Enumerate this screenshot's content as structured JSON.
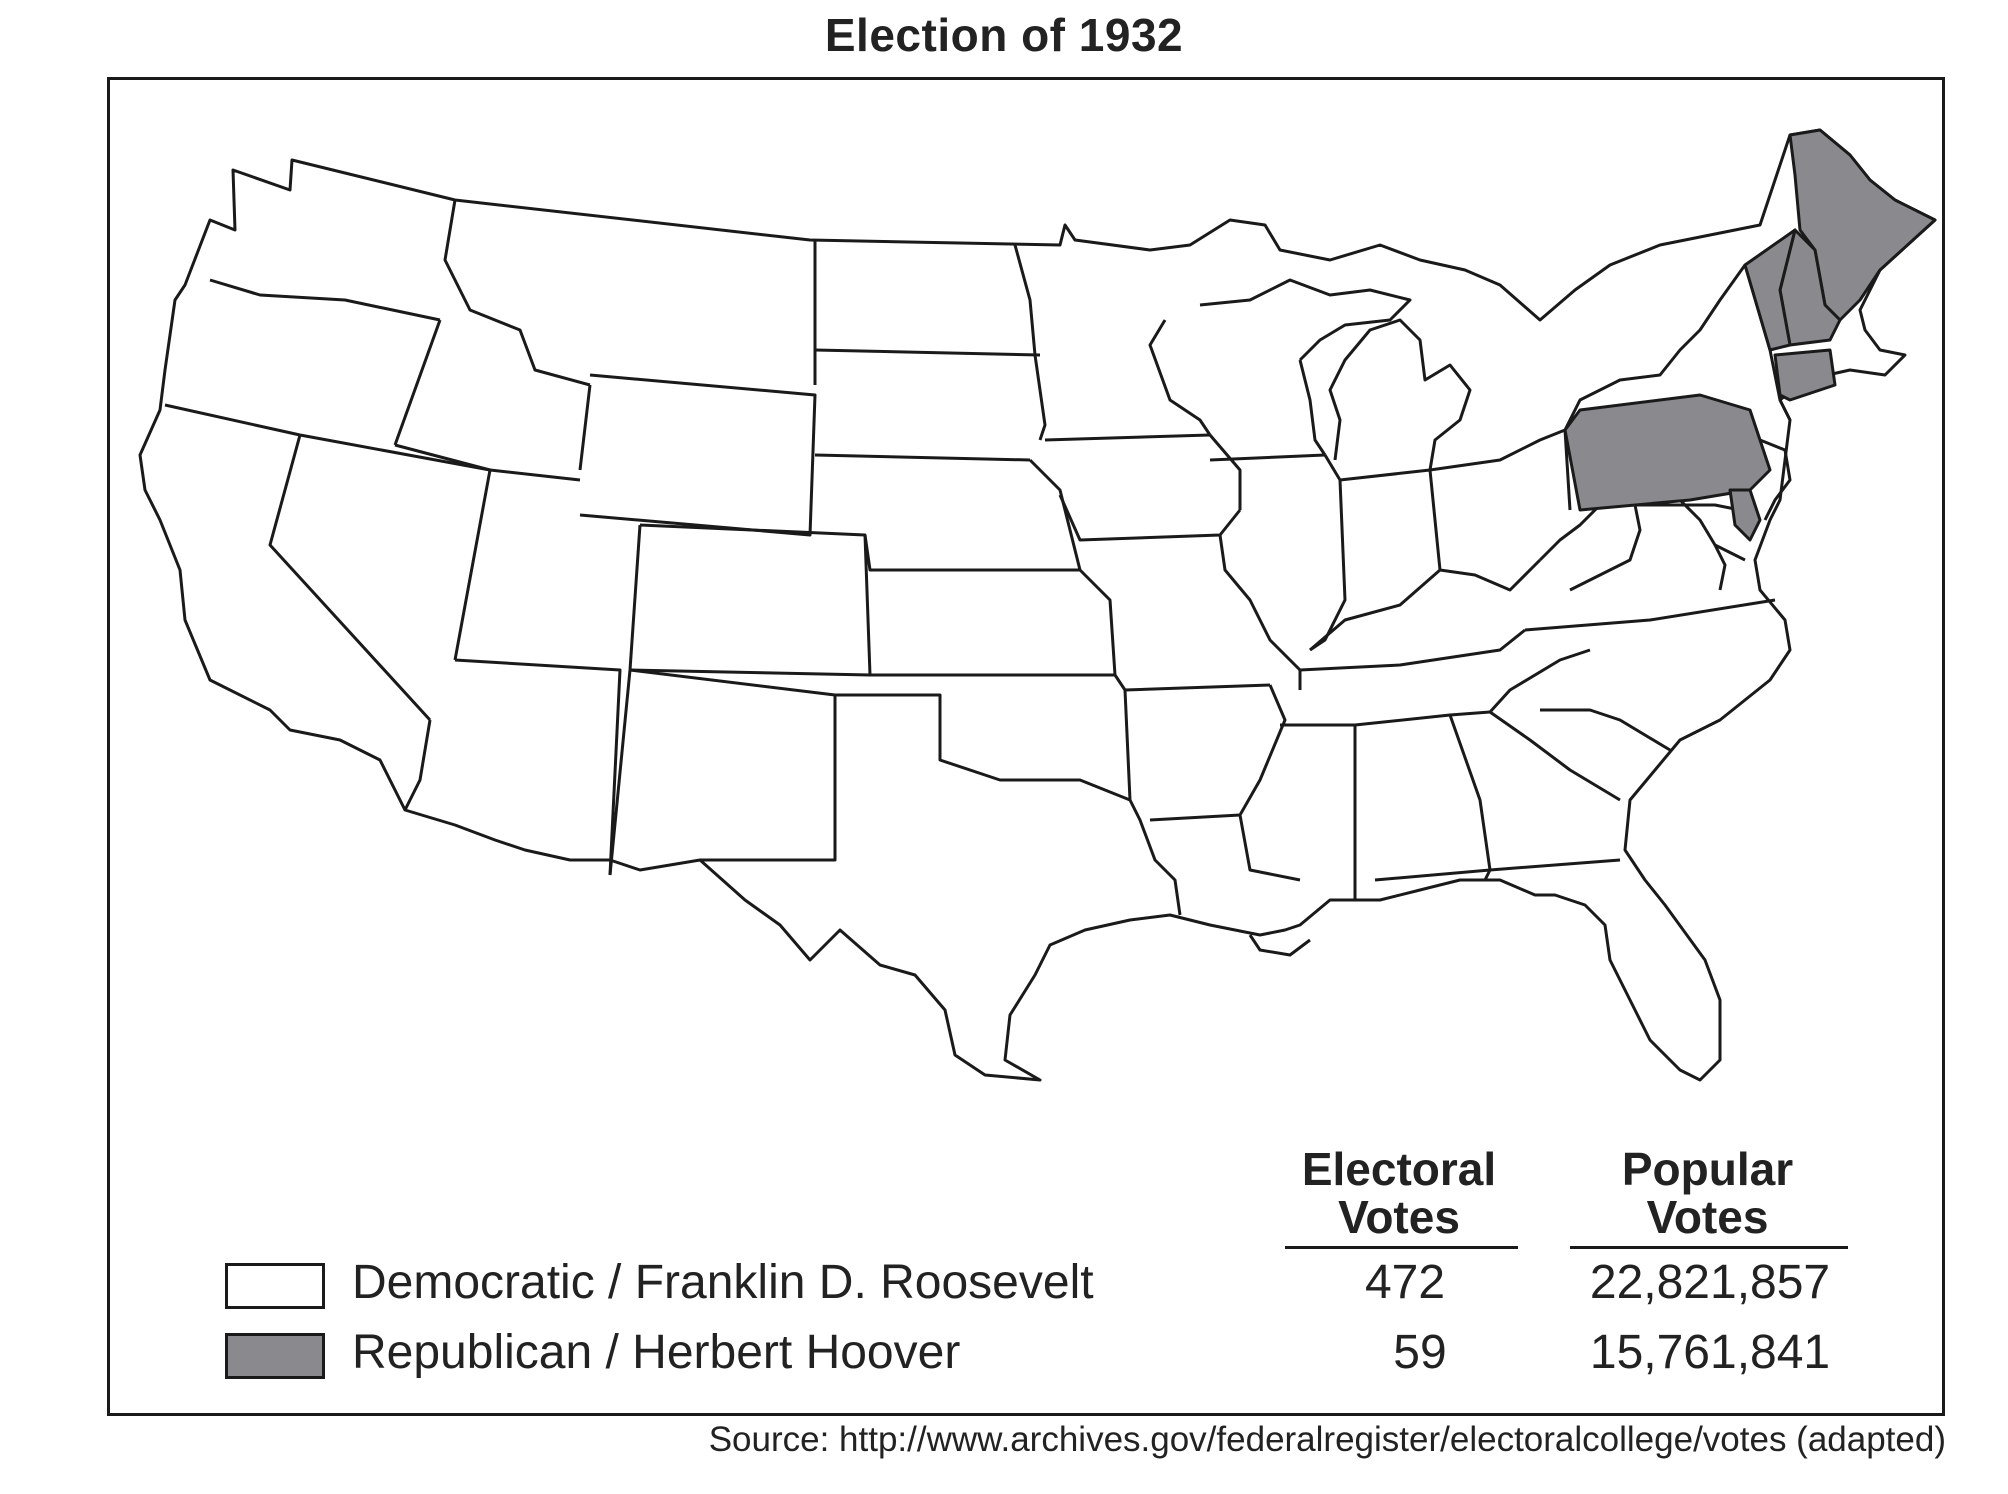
{
  "title": "Election of 1932",
  "legend": [
    {
      "party_candidate": "Democratic / Franklin D. Roosevelt",
      "color": "#ffffff",
      "electoral_votes": "472",
      "popular_votes": "22,821,857"
    },
    {
      "party_candidate": "Republican / Herbert Hoover",
      "color": "#8a8a8e",
      "electoral_votes": "59",
      "popular_votes": "15,761,841"
    }
  ],
  "columns": {
    "electoral_line1": "Electoral",
    "electoral_line2": "Votes",
    "popular_line1": "Popular",
    "popular_line2": "Votes"
  },
  "republican_states": [
    "Maine",
    "Vermont",
    "New Hampshire",
    "Connecticut",
    "Pennsylvania",
    "Delaware"
  ],
  "source": "Source: http://www.archives.gov/federalregister/electoralcollege/votes (adapted)"
}
